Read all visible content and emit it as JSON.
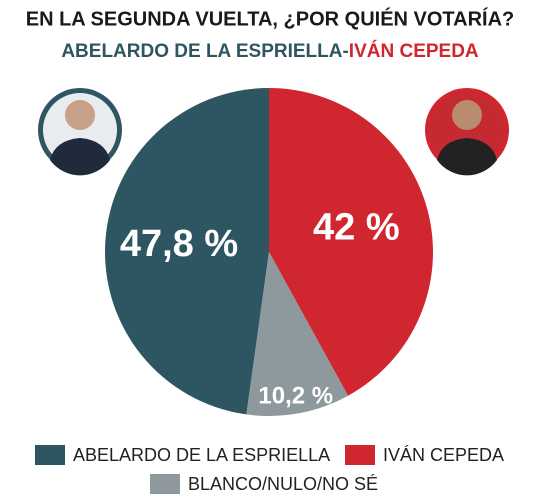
{
  "chart_data": {
    "type": "pie",
    "title": "EN LA SEGUNDA VUELTA, ¿POR QUIÉN VOTARÍA?",
    "subtitle": {
      "left": "ABELARDO DE LA ESPRIELLA",
      "separator": "-",
      "right": "IVÁN CEPEDA"
    },
    "categories": [
      "ABELARDO DE LA ESPRIELLA",
      "IVÁN CEPEDA",
      "BLANCO/NULO/NO SÉ"
    ],
    "values": [
      47.8,
      42,
      10.2
    ],
    "value_labels": [
      "47,8 %",
      "42 %",
      "10,2 %"
    ],
    "colors": [
      "#2e5562",
      "#d0262f",
      "#8e999d"
    ],
    "legend": "bottom"
  }
}
